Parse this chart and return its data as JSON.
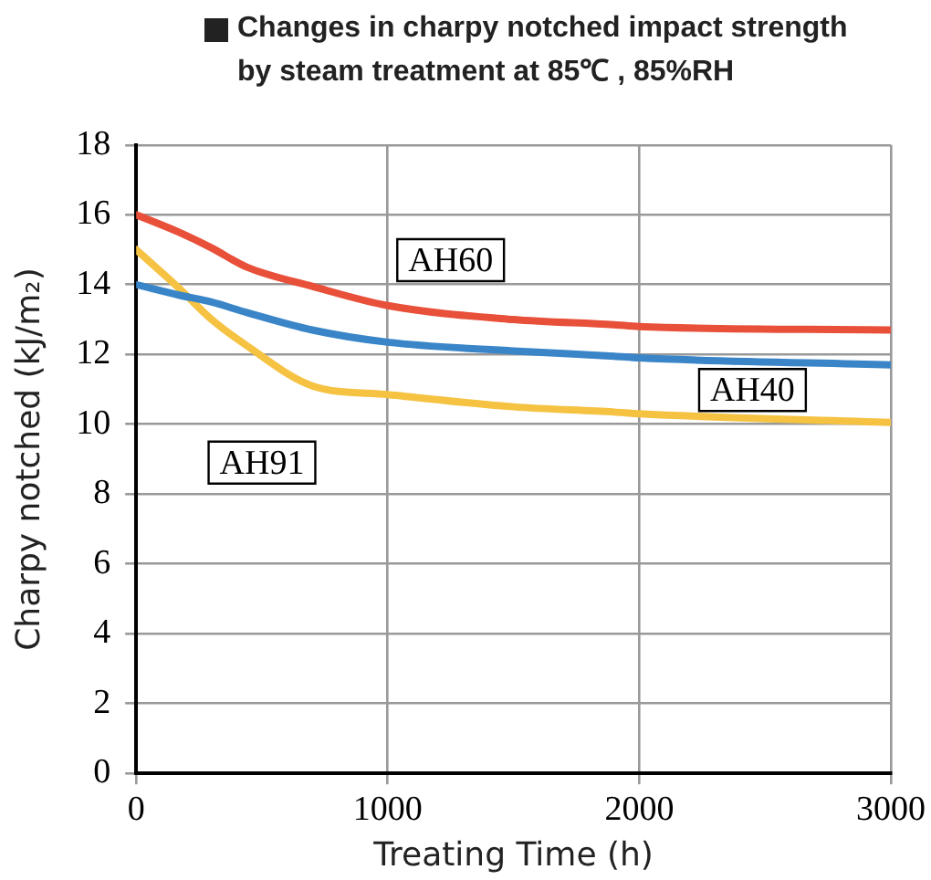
{
  "chart_data": {
    "type": "line",
    "title": "Changes in charpy notched impact strength by steam treatment at 85℃ , 85%RH",
    "xlabel": "Treating Time (h)",
    "ylabel": "Charpy notched (kJ/m₂)",
    "x": [
      0,
      170,
      300,
      440,
      700,
      1000,
      1500,
      1900,
      2000,
      3000
    ],
    "series": [
      {
        "name": "AH60",
        "color": "#e8503a",
        "values": [
          16.0,
          15.5,
          15.05,
          14.5,
          13.95,
          13.4,
          13.0,
          12.85,
          12.8,
          12.7
        ]
      },
      {
        "name": "AH40",
        "color": "#3a85c8",
        "values": [
          14.0,
          13.7,
          13.5,
          13.2,
          12.7,
          12.35,
          12.1,
          11.95,
          11.9,
          11.7
        ]
      },
      {
        "name": "AH91",
        "color": "#f5c242",
        "values": [
          15.0,
          13.9,
          13.0,
          12.25,
          11.1,
          10.85,
          10.5,
          10.35,
          10.3,
          10.05
        ]
      }
    ],
    "xlim": [
      0,
      3000
    ],
    "xticks": [
      0,
      1000,
      2000,
      3000
    ],
    "ylim": [
      0,
      18
    ],
    "yticks": [
      0,
      2,
      4,
      6,
      8,
      10,
      12,
      14,
      16,
      18
    ],
    "grid": true,
    "legend": false,
    "marker": "none",
    "line_style": "solid"
  }
}
